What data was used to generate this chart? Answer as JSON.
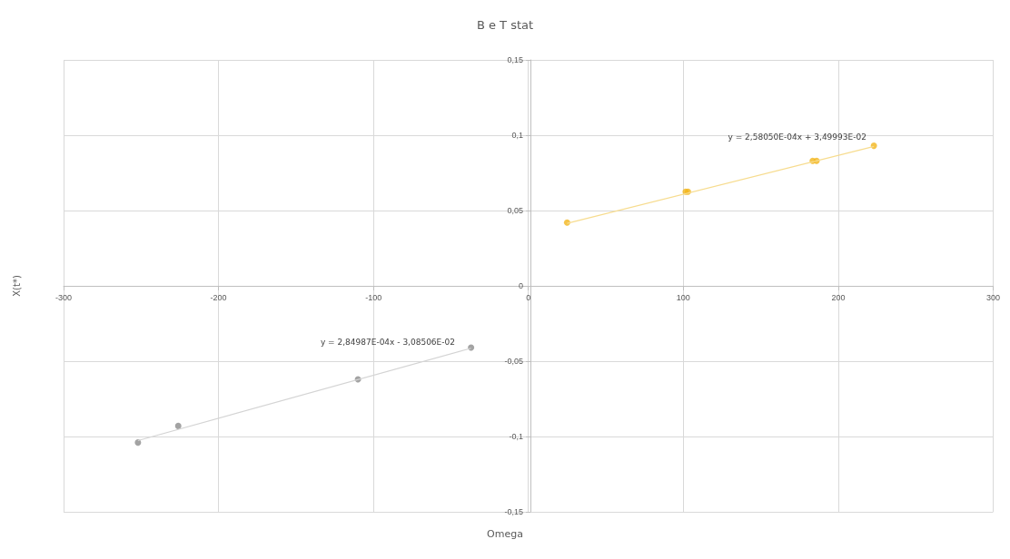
{
  "chart_data": {
    "type": "scatter",
    "title": "B e T stat",
    "xlabel": "Omega",
    "ylabel": "X(t*)",
    "series": [
      {
        "color": "#f2b51c",
        "x": [
          25,
          101.5,
          103,
          183.5,
          186,
          223
        ],
        "values": [
          0.042,
          0.0625,
          0.0625,
          0.083,
          0.083,
          0.093
        ]
      },
      {
        "color": "#8c8c8c",
        "x": [
          -252,
          -226,
          -110,
          -37
        ],
        "values": [
          -0.104,
          -0.093,
          -0.062,
          -0.041
        ]
      },
      {
        "type": "line",
        "marker": "none",
        "color": "#f7dc8f",
        "x": [
          25,
          223
        ],
        "values": [
          0.0415,
          0.0925
        ]
      },
      {
        "type": "line",
        "marker": "none",
        "color": "#d4d4d4",
        "x": [
          -252,
          -37
        ],
        "values": [
          -0.1027,
          -0.0414
        ]
      }
    ],
    "annotations": [
      "y = 2,58050E-04x + 3,49993E-02",
      "y = 2,84987E-04x - 3,08506E-02"
    ],
    "xlim": [
      -300,
      300
    ],
    "xticks": [
      -300,
      -200,
      -100,
      0,
      100,
      200,
      300
    ],
    "ylim": [
      -0.15,
      0.15
    ],
    "yticks": [
      {
        "value": -0.15,
        "label": "-0,15"
      },
      {
        "value": -0.1,
        "label": "-0,1"
      },
      {
        "value": -0.05,
        "label": "-0,05"
      },
      {
        "value": 0,
        "label": "0"
      },
      {
        "value": 0.05,
        "label": "0,05"
      },
      {
        "value": 0.1,
        "label": "0,1"
      },
      {
        "value": 0.15,
        "label": "0,15"
      }
    ],
    "grid": true,
    "marker": "circle",
    "line_style": "solid"
  }
}
